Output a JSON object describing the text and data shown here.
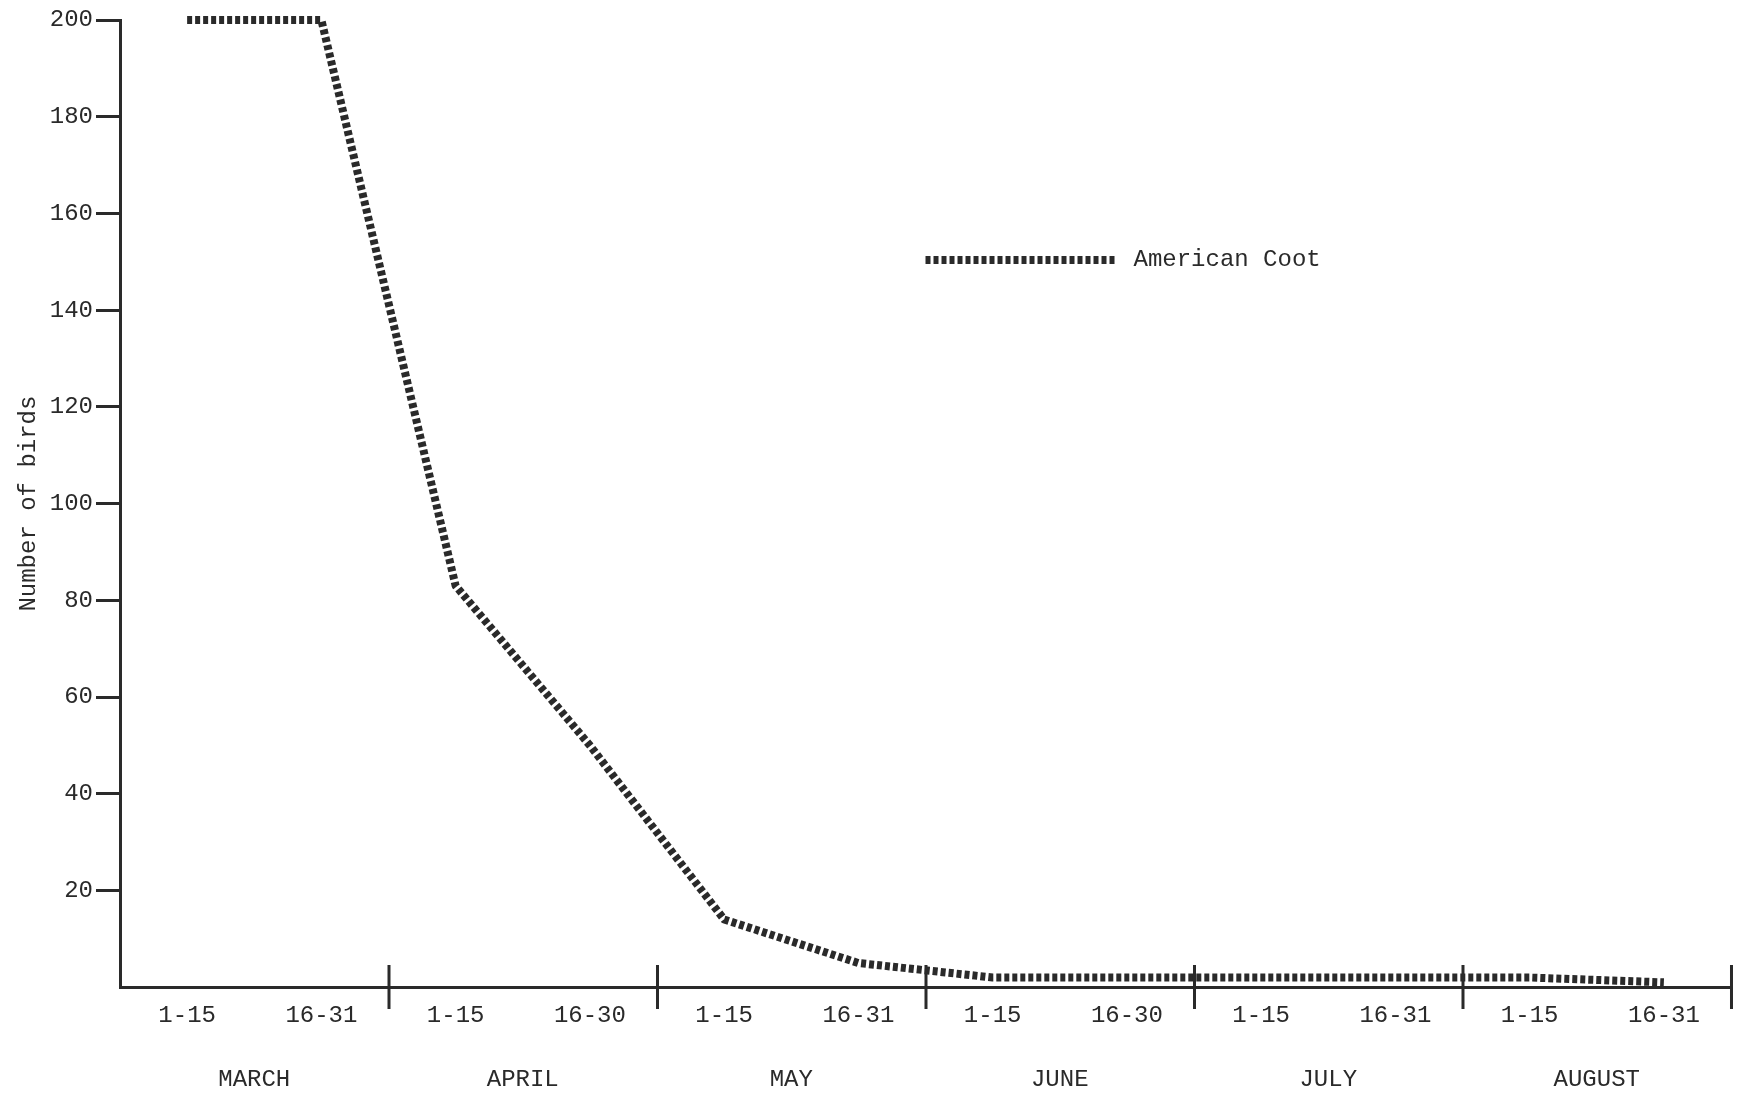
{
  "chart_data": {
    "type": "line",
    "ylabel": "Number of birds",
    "categories": [
      "1-15",
      "16-31",
      "1-15",
      "16-30",
      "1-15",
      "16-31",
      "1-15",
      "16-30",
      "1-15",
      "16-31",
      "1-15",
      "16-31"
    ],
    "series": [
      {
        "name": "American Coot",
        "color": "#2a2a2a",
        "values": [
          200,
          200,
          83,
          50,
          14,
          5,
          2,
          2,
          2,
          2,
          2,
          1
        ]
      }
    ],
    "annotations": [
      "MARCH",
      "APRIL",
      "MAY",
      "JUNE",
      "JULY",
      "AUGUST"
    ],
    "ylim": [
      0,
      200
    ],
    "yticks": [
      20,
      40,
      60,
      80,
      100,
      120,
      140,
      160,
      180,
      200
    ],
    "grid": false,
    "legend": "top right",
    "marker": "none",
    "line_style": "dashed"
  }
}
